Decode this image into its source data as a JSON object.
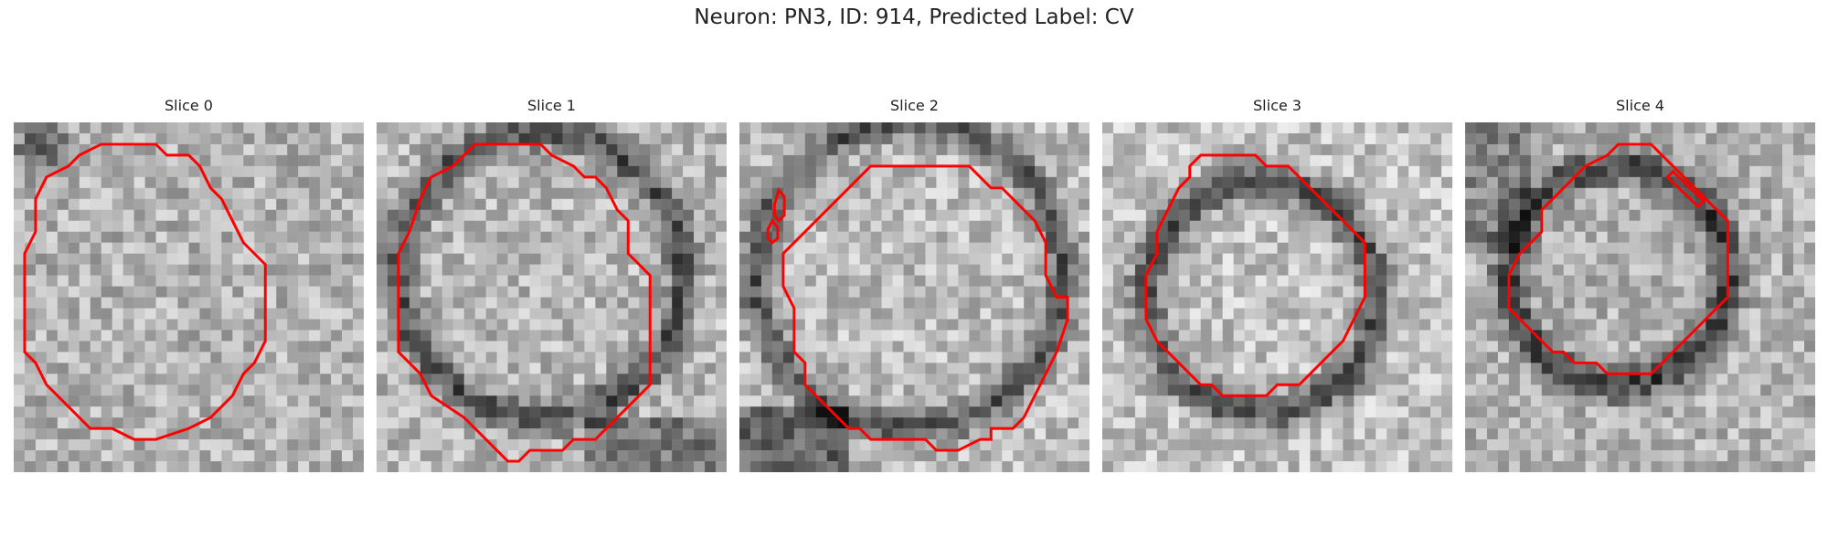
{
  "figure": {
    "title": "Neuron: PN3, ID: 914, Predicted Label: CV"
  },
  "contour_color": "#ff0000",
  "slices": [
    {
      "label": "Slice 0"
    },
    {
      "label": "Slice 1"
    },
    {
      "label": "Slice 2"
    },
    {
      "label": "Slice 3"
    },
    {
      "label": "Slice 4"
    }
  ]
}
